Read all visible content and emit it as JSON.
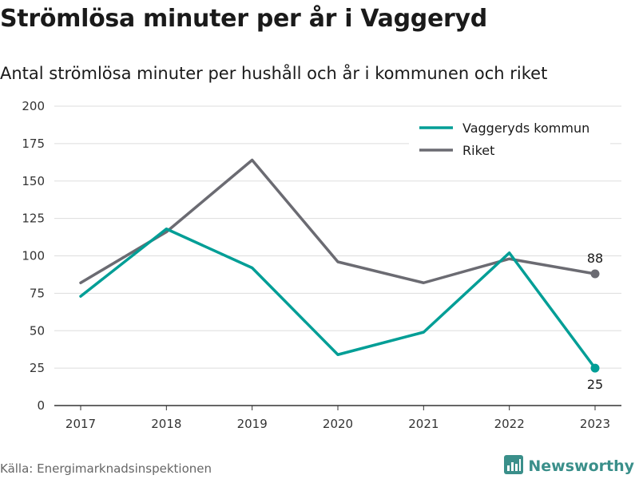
{
  "title": "Strömlösa minuter per år i Vaggeryd",
  "subtitle": "Antal strömlösa minuter per hushåll och år i kommunen och riket",
  "source": "Källa: Energimarknadsinspektionen",
  "brand": {
    "name": "Newsworthy",
    "icon": "newsworthy-logo-icon"
  },
  "colors": {
    "vaggeryd": "#009e96",
    "riket": "#6b6b72",
    "grid": "#dddddd",
    "axis": "#333333"
  },
  "chart_data": {
    "type": "line",
    "x": [
      "2017",
      "2018",
      "2019",
      "2020",
      "2021",
      "2022",
      "2023"
    ],
    "ylim": [
      0,
      200
    ],
    "yticks": [
      0,
      25,
      50,
      75,
      100,
      125,
      150,
      175,
      200
    ],
    "grid": true,
    "legend_position": "top-right",
    "series": [
      {
        "name": "Vaggeryds kommun",
        "values": [
          73,
          118,
          92,
          34,
          49,
          102,
          25
        ],
        "end_label": "25"
      },
      {
        "name": "Riket",
        "values": [
          82,
          116,
          164,
          96,
          82,
          98,
          88
        ],
        "end_label": "88"
      }
    ]
  }
}
